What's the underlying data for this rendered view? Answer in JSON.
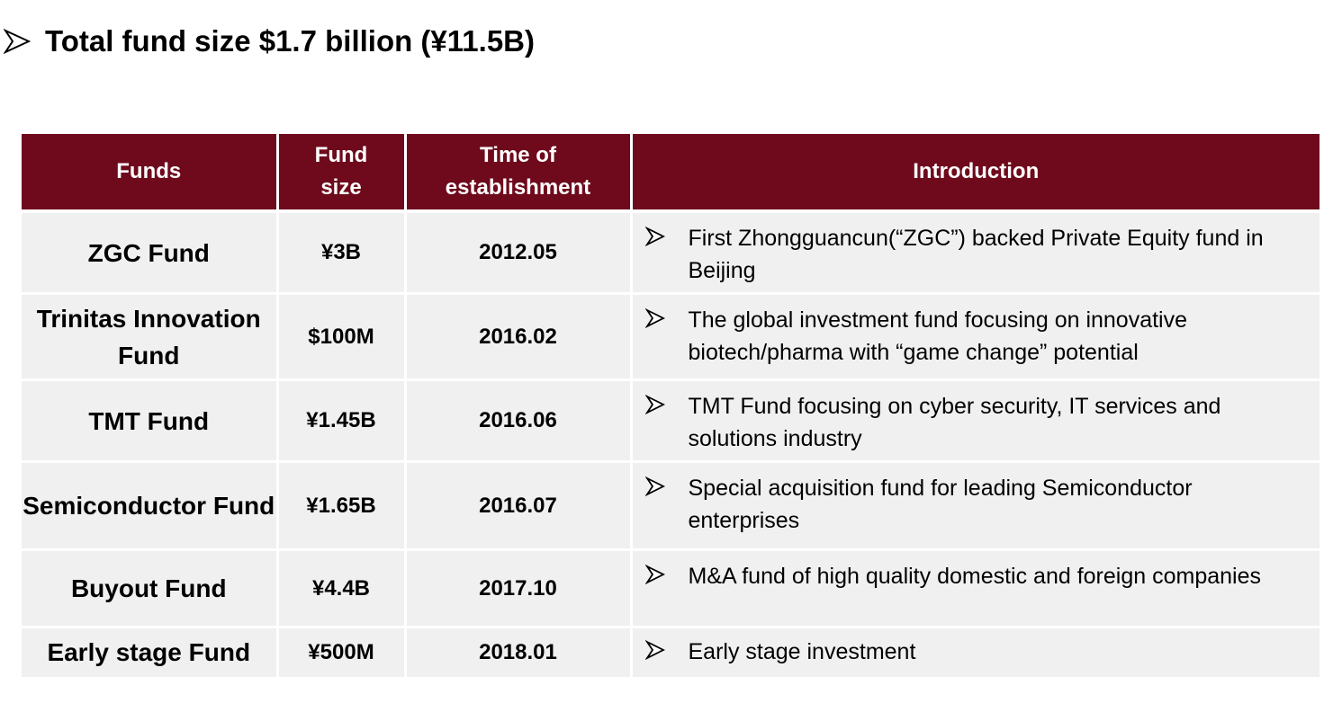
{
  "headline": {
    "bullet_icon": "arrow-bullet",
    "text": "Total fund size $1.7 billion (¥11.5B)"
  },
  "table": {
    "header_color": "#6e0a1c",
    "row_color": "#f0f0f0",
    "columns": {
      "funds": "Funds",
      "fund_size": "Fund size",
      "time_of_establishment": "Time of establishment",
      "introduction": "Introduction"
    },
    "rows": [
      {
        "fund": "ZGC Fund",
        "size": "¥3B",
        "time": "2012.05",
        "intro": "First Zhongguancun(“ZGC”) backed Private Equity fund in Beijing"
      },
      {
        "fund": "Trinitas Innovation Fund",
        "size": "$100M",
        "time": "2016.02",
        "intro": "The global investment fund focusing on innovative biotech/pharma with “game change” potential"
      },
      {
        "fund": "TMT Fund",
        "size": "¥1.45B",
        "time": "2016.06",
        "intro": "TMT Fund focusing on cyber security, IT services and solutions industry"
      },
      {
        "fund": "Semiconductor Fund",
        "size": "¥1.65B",
        "time": "2016.07",
        "intro": "Special acquisition fund for leading Semiconductor enterprises"
      },
      {
        "fund": "Buyout Fund",
        "size": "¥4.4B",
        "time": "2017.10",
        "intro": "M&A fund of high quality domestic and foreign companies"
      },
      {
        "fund": "Early stage Fund",
        "size": "¥500M",
        "time": "2018.01",
        "intro": "Early stage investment"
      }
    ]
  }
}
